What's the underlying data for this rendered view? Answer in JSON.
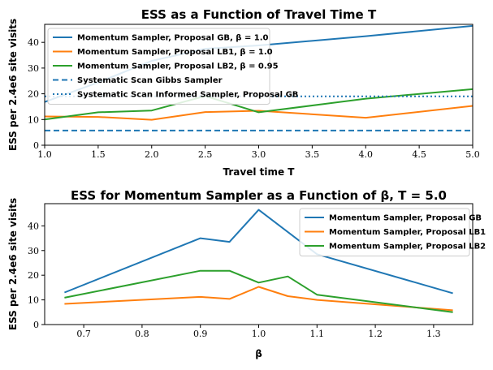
{
  "chart_data": [
    {
      "type": "line",
      "title": "ESS as a Function of Travel Time T",
      "xlabel": "Travel time T",
      "ylabel": "ESS per 2.4e6 site visits",
      "xlim": [
        1.0,
        5.0
      ],
      "ylim": [
        0,
        47
      ],
      "xticks": [
        1.0,
        1.5,
        2.0,
        2.5,
        3.0,
        3.5,
        4.0,
        4.5,
        5.0
      ],
      "xtick_labels": [
        "1.0",
        "1.5",
        "2.0",
        "2.5",
        "3.0",
        "3.5",
        "4.0",
        "4.5",
        "5.0"
      ],
      "yticks": [
        0,
        10,
        20,
        30,
        40
      ],
      "ytick_labels": [
        "0",
        "10",
        "20",
        "30",
        "40"
      ],
      "legend_position": "top-left",
      "series": [
        {
          "name": "Momentum Sampler, Proposal GB, β = 1.0",
          "color": "#1f77b4",
          "style": "solid",
          "x": [
            1.0,
            1.5,
            2.0,
            2.5,
            3.0,
            4.0,
            5.0
          ],
          "y": [
            16.8,
            24.4,
            32.8,
            37.5,
            38.8,
            42.4,
            46.4
          ]
        },
        {
          "name": "Momentum Sampler, Proposal LB1, β = 1.0",
          "color": "#ff7f0e",
          "style": "solid",
          "x": [
            1.0,
            1.5,
            2.0,
            2.5,
            3.0,
            4.0,
            5.0
          ],
          "y": [
            11.2,
            11.0,
            9.9,
            12.9,
            13.4,
            10.7,
            15.3
          ]
        },
        {
          "name": "Momentum Sampler, Proposal LB2, β = 0.95",
          "color": "#2ca02c",
          "style": "solid",
          "x": [
            1.0,
            1.5,
            2.0,
            2.5,
            3.0,
            4.0,
            5.0
          ],
          "y": [
            10.0,
            12.8,
            13.5,
            19.1,
            12.8,
            18.1,
            21.8
          ]
        },
        {
          "name": "Systematic Scan Gibbs Sampler",
          "color": "#1f77b4",
          "style": "dashed",
          "x": [
            1.0,
            5.0
          ],
          "y": [
            5.7,
            5.7
          ]
        },
        {
          "name": "Systematic Scan Informed Sampler, Proposal GB",
          "color": "#1f77b4",
          "style": "dotted",
          "x": [
            1.0,
            5.0
          ],
          "y": [
            19.0,
            19.0
          ]
        }
      ]
    },
    {
      "type": "line",
      "title": "ESS for Momentum Sampler as a Function of β, T = 5.0",
      "xlabel": "β",
      "ylabel": "ESS per 2.4e6 site visits",
      "xlim": [
        0.633,
        1.367
      ],
      "ylim": [
        0,
        49
      ],
      "xticks": [
        0.7,
        0.8,
        0.9,
        1.0,
        1.1,
        1.2,
        1.3
      ],
      "xtick_labels": [
        "0.7",
        "0.8",
        "0.9",
        "1.0",
        "1.1",
        "1.2",
        "1.3"
      ],
      "yticks": [
        0,
        10,
        20,
        30,
        40
      ],
      "ytick_labels": [
        "0",
        "10",
        "20",
        "30",
        "40"
      ],
      "legend_position": "top-right",
      "series": [
        {
          "name": "Momentum Sampler, Proposal GB",
          "color": "#1f77b4",
          "style": "solid",
          "x": [
            0.667,
            0.9,
            0.95,
            1.0,
            1.1,
            1.333
          ],
          "y": [
            13.0,
            35.0,
            33.5,
            46.5,
            28.5,
            12.7
          ]
        },
        {
          "name": "Momentum Sampler, Proposal LB1",
          "color": "#ff7f0e",
          "style": "solid",
          "x": [
            0.667,
            0.9,
            0.95,
            1.0,
            1.05,
            1.1,
            1.333
          ],
          "y": [
            8.4,
            11.2,
            10.4,
            15.3,
            11.5,
            10.0,
            5.8
          ]
        },
        {
          "name": "Momentum Sampler, Proposal LB2",
          "color": "#2ca02c",
          "style": "solid",
          "x": [
            0.667,
            0.9,
            0.95,
            1.0,
            1.05,
            1.1,
            1.333
          ],
          "y": [
            10.9,
            21.8,
            21.8,
            17.0,
            19.5,
            12.1,
            5.0
          ]
        }
      ]
    }
  ]
}
